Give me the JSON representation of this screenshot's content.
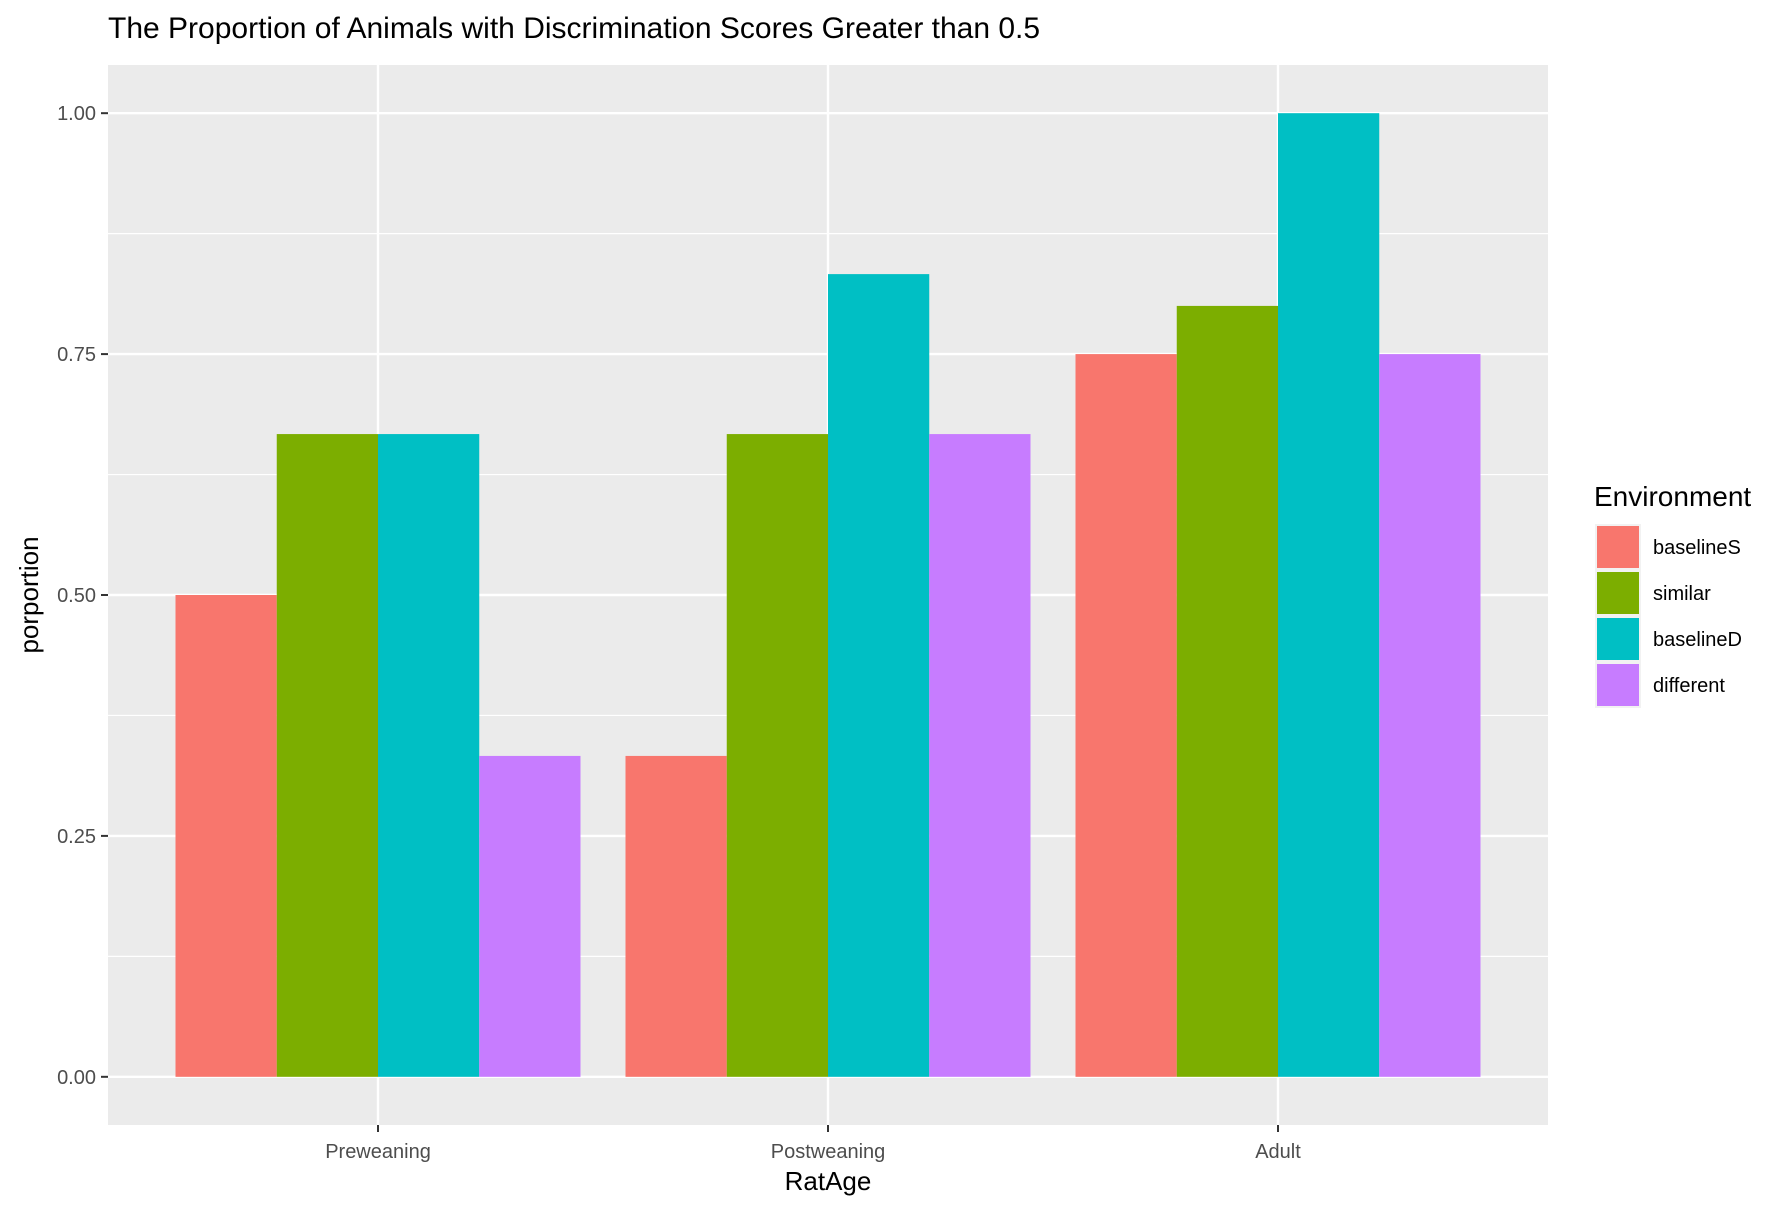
{
  "chart_data": {
    "type": "bar",
    "title": "The Proportion of Animals with Discrimination Scores Greater than 0.5",
    "xlabel": "RatAge",
    "ylabel": "porportion",
    "categories": [
      "Preweaning",
      "Postweaning",
      "Adult"
    ],
    "series": [
      {
        "name": "baselineS",
        "color": "#F8766D",
        "values": [
          0.5,
          0.333,
          0.75
        ]
      },
      {
        "name": "similar",
        "color": "#7CAE00",
        "values": [
          0.667,
          0.667,
          0.8
        ]
      },
      {
        "name": "baselineD",
        "color": "#00BFC4",
        "values": [
          0.667,
          0.833,
          1.0
        ]
      },
      {
        "name": "different",
        "color": "#C77CFF",
        "values": [
          0.333,
          0.667,
          0.75
        ]
      }
    ],
    "ylim": [
      -0.05,
      1.05
    ],
    "yticks": [
      0.0,
      0.25,
      0.5,
      0.75,
      1.0
    ],
    "ytick_labels": [
      "0.00",
      "0.25",
      "0.50",
      "0.75",
      "1.00"
    ],
    "grid": true,
    "legend": {
      "title": "Environment",
      "position": "right"
    },
    "colors": {
      "panel_bg": "#EBEBEB",
      "grid": "#FFFFFF",
      "text": "#000000",
      "axis_text": "#4D4D4D",
      "tick": "#333333"
    }
  }
}
